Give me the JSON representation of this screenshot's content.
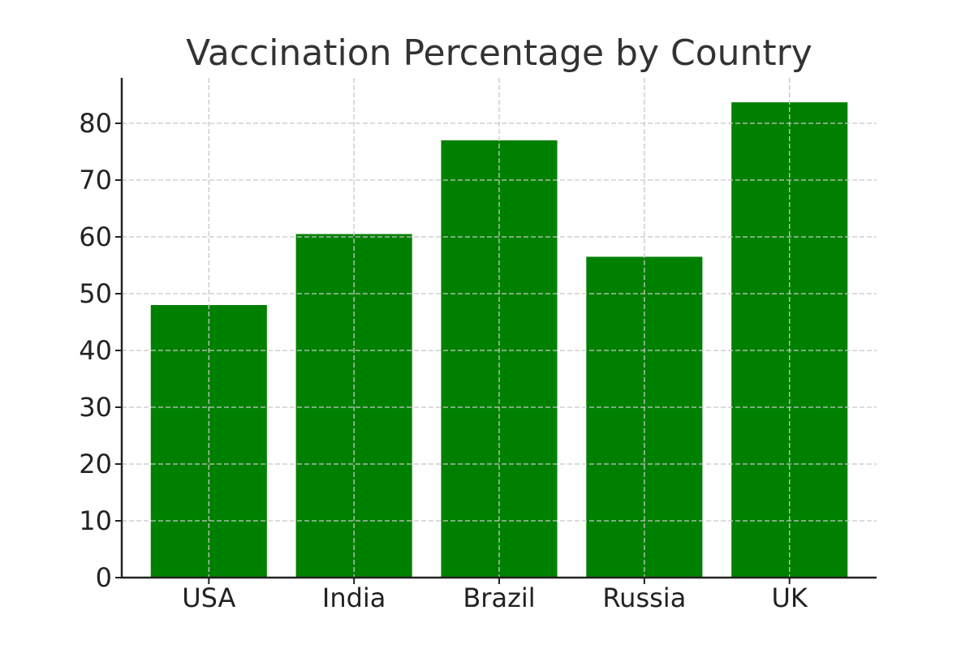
{
  "chart_data": {
    "type": "bar",
    "title": "Vaccination Percentage by Country",
    "xlabel": "",
    "ylabel": "",
    "categories": [
      "USA",
      "India",
      "Brazil",
      "Russia",
      "UK"
    ],
    "values": [
      48,
      60.5,
      77,
      56.5,
      83.7
    ],
    "ylim": [
      0,
      88
    ],
    "yticks": [
      0,
      10,
      20,
      30,
      40,
      50,
      60,
      70,
      80
    ],
    "grid": true,
    "legend": "none",
    "bar_color": "#008000",
    "grid_color": "#c8c8c8",
    "axis_color": "#222222",
    "title_color": "#333333"
  }
}
